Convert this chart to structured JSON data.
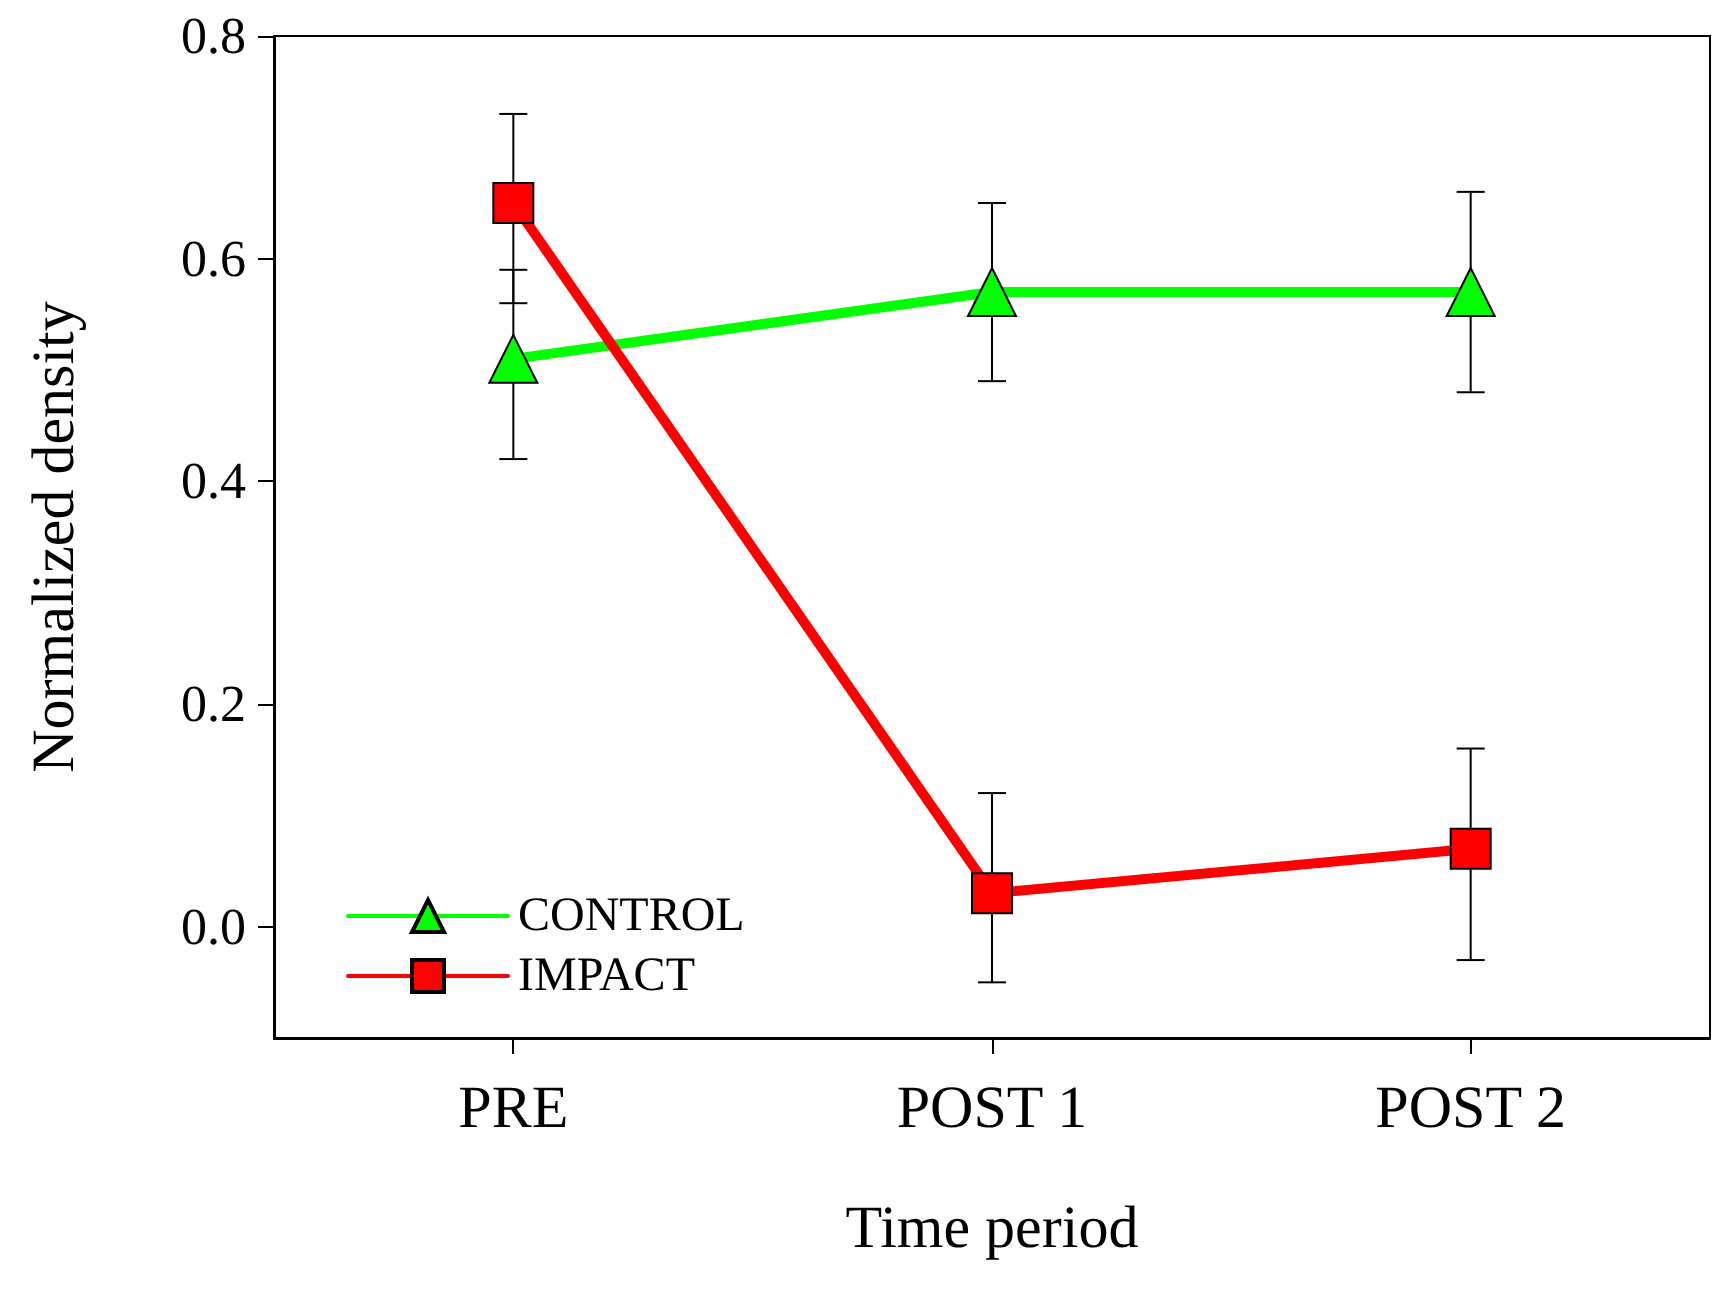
{
  "chart_data": {
    "type": "line",
    "xlabel": "Time period",
    "ylabel": "Normalized density",
    "categories": [
      "PRE",
      "POST 1",
      "POST 2"
    ],
    "series": [
      {
        "name": "CONTROL",
        "color": "#00ff00",
        "marker": "triangle",
        "values": [
          0.51,
          0.57,
          0.57
        ],
        "errors": [
          [
            0.42,
            0.59
          ],
          [
            0.49,
            0.65
          ],
          [
            0.48,
            0.66
          ]
        ]
      },
      {
        "name": "IMPACT",
        "color": "#ff0000",
        "marker": "square",
        "values": [
          0.65,
          0.03,
          0.07
        ],
        "errors": [
          [
            0.56,
            0.73
          ],
          [
            -0.05,
            0.12
          ],
          [
            -0.03,
            0.16
          ]
        ]
      }
    ],
    "ylim": [
      -0.1,
      0.8
    ],
    "yticks": [
      {
        "value": 0,
        "label": "0.0"
      },
      {
        "value": 0.2,
        "label": "0.2"
      },
      {
        "value": 0.4,
        "label": "0.4"
      },
      {
        "value": 0.6,
        "label": "0.6"
      },
      {
        "value": 0.8,
        "label": "0.8"
      }
    ],
    "grid": false,
    "legend": "bottom left",
    "line_style": "solid"
  }
}
